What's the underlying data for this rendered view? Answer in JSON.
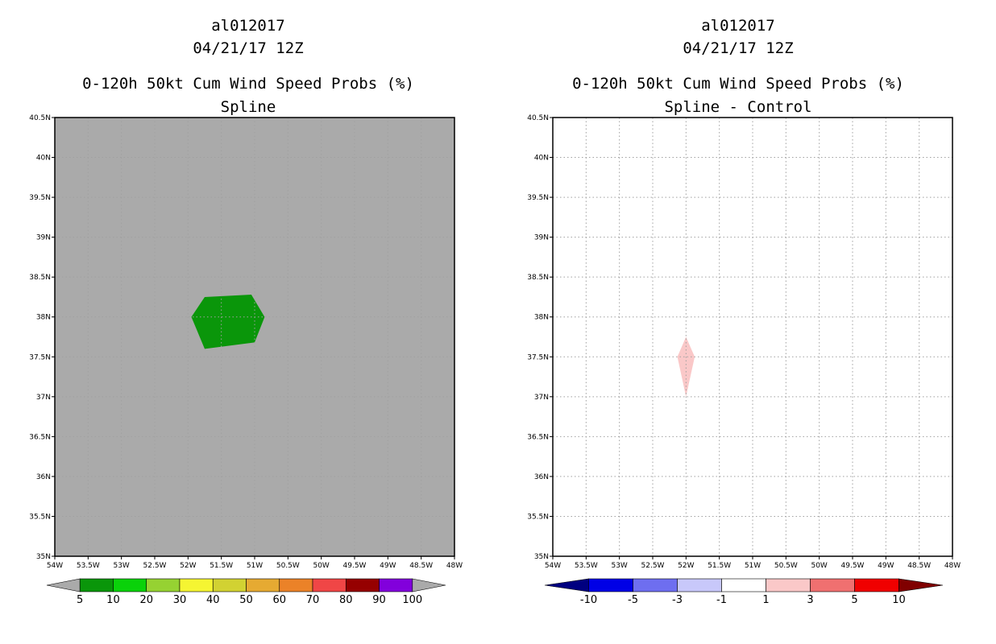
{
  "chart_data": [
    {
      "type": "heatmap",
      "storm_id": "al012017",
      "date_time": "04/21/17 12Z",
      "title": "0-120h 50kt Cum Wind Speed Probs (%)",
      "subtitle": "Spline",
      "xlim": [
        -54,
        -48
      ],
      "ylim": [
        35,
        40.5
      ],
      "x_ticks": [
        -54,
        -53.5,
        -53,
        -52.5,
        -52,
        -51.5,
        -51,
        -50.5,
        -50,
        -49.5,
        -49,
        -48.5,
        -48
      ],
      "x_tick_labels": [
        "54W",
        "53.5W",
        "53W",
        "52.5W",
        "52W",
        "51.5W",
        "51W",
        "50.5W",
        "50W",
        "49.5W",
        "49W",
        "48.5W",
        "48W"
      ],
      "y_ticks": [
        35,
        35.5,
        36,
        36.5,
        37,
        37.5,
        38,
        38.5,
        39,
        39.5,
        40,
        40.5
      ],
      "y_tick_labels": [
        "35N",
        "35.5N",
        "36N",
        "36.5N",
        "37N",
        "37.5N",
        "38N",
        "38.5N",
        "39N",
        "39.5N",
        "40N",
        "40.5N"
      ],
      "grid": true,
      "background_color": "#aaaaaa",
      "regions": [
        {
          "value_range": "5-10",
          "color": "#0a960a",
          "polygon_lon_lat": [
            [
              -51.75,
              38.25
            ],
            [
              -51.05,
              38.28
            ],
            [
              -50.85,
              38.0
            ],
            [
              -51.0,
              37.68
            ],
            [
              -51.75,
              37.6
            ],
            [
              -51.95,
              38.0
            ]
          ]
        }
      ],
      "colorbar": {
        "labels": [
          "5",
          "10",
          "20",
          "30",
          "40",
          "50",
          "60",
          "70",
          "80",
          "90",
          "100"
        ],
        "low_color": "#aaaaaa",
        "high_color": "#aaaaaa",
        "colors": [
          "#0a960a",
          "#0ad20a",
          "#96d232",
          "#f5f532",
          "#d2d232",
          "#e6aa32",
          "#eb8228",
          "#f04646",
          "#960000",
          "#8200dc"
        ]
      }
    },
    {
      "type": "heatmap",
      "storm_id": "al012017",
      "date_time": "04/21/17 12Z",
      "title": "0-120h 50kt Cum Wind Speed Probs (%)",
      "subtitle": "Spline - Control",
      "xlim": [
        -54,
        -48
      ],
      "ylim": [
        35,
        40.5
      ],
      "x_ticks": [
        -54,
        -53.5,
        -53,
        -52.5,
        -52,
        -51.5,
        -51,
        -50.5,
        -50,
        -49.5,
        -49,
        -48.5,
        -48
      ],
      "x_tick_labels": [
        "54W",
        "53.5W",
        "53W",
        "52.5W",
        "52W",
        "51.5W",
        "51W",
        "50.5W",
        "50W",
        "49.5W",
        "49W",
        "48.5W",
        "48W"
      ],
      "y_ticks": [
        35,
        35.5,
        36,
        36.5,
        37,
        37.5,
        38,
        38.5,
        39,
        39.5,
        40,
        40.5
      ],
      "y_tick_labels": [
        "35N",
        "35.5N",
        "36N",
        "36.5N",
        "37N",
        "37.5N",
        "38N",
        "38.5N",
        "39N",
        "39.5N",
        "40N",
        "40.5N"
      ],
      "grid": true,
      "background_color": "#ffffff",
      "regions": [
        {
          "value_range": "1-3",
          "color": "#fac8c8",
          "polygon_lon_lat": [
            [
              -52.0,
              37.75
            ],
            [
              -51.87,
              37.5
            ],
            [
              -52.0,
              37.0
            ],
            [
              -52.13,
              37.5
            ]
          ]
        }
      ],
      "colorbar": {
        "labels": [
          "-10",
          "-5",
          "-3",
          "-1",
          "1",
          "3",
          "5",
          "10"
        ],
        "low_color": "#000080",
        "high_color": "#800000",
        "colors": [
          "#0000e6",
          "#6e6ef0",
          "#c8c8fa",
          "#ffffff",
          "#fac8c8",
          "#f07070",
          "#f00000"
        ]
      }
    }
  ]
}
